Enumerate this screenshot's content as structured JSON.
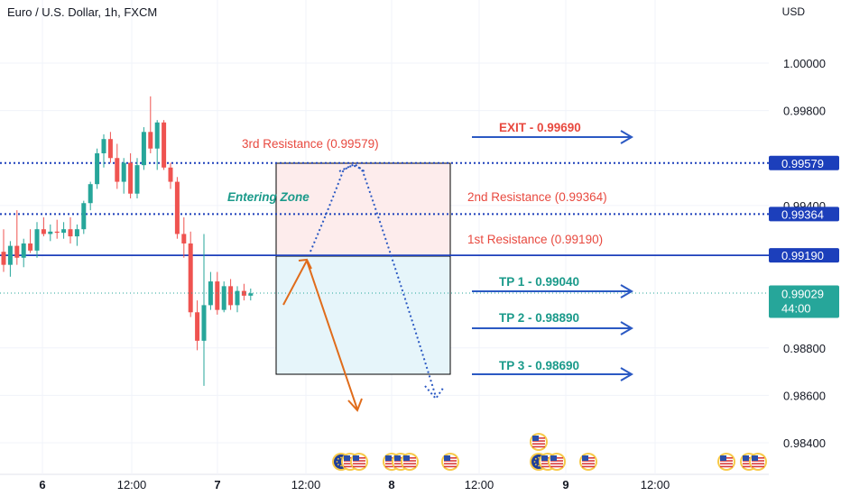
{
  "header": {
    "symbol_title": "Euro / U.S. Dollar, 1h, FXCM",
    "currency": "USD"
  },
  "colors": {
    "up": "#26a69a",
    "down": "#ef5350",
    "support_line": "#1c3fbb",
    "dotted_line": "#1c3fbb",
    "label_red": "#e8493f",
    "label_teal": "#1a9a8a",
    "arrow_blue": "#2b59c3",
    "arrow_orange": "#e06c1b",
    "zone_red": "#fdecec",
    "zone_blue": "#e6f5fa",
    "price_tag_blue": "#1c3fbb",
    "price_tag_teal": "#26a69a"
  },
  "chart_data": {
    "type": "candlestick",
    "x_ticks": [
      "6",
      "12:00",
      "7",
      "12:00",
      "8",
      "12:00",
      "9",
      "12:00"
    ],
    "y_ticks": [
      "1.00000",
      "0.99800",
      "0.99400",
      "0.98800",
      "0.98600",
      "0.98400"
    ],
    "ylim": [
      0.983,
      1.0015
    ],
    "current_price": "0.99029",
    "countdown": "44:00",
    "levels": [
      {
        "name": "3rd Resistance",
        "value": 0.99579,
        "tag": "0.99579",
        "style": "dotted"
      },
      {
        "name": "2nd Resistance",
        "value": 0.99364,
        "tag": "0.99364",
        "style": "dotted"
      },
      {
        "name": "1st Resistance",
        "value": 0.9919,
        "tag": "0.99190",
        "style": "solid"
      }
    ],
    "annotations": {
      "third_resistance": "3rd Resistance (0.99579)",
      "second_resistance": "2nd Resistance (0.99364)",
      "first_resistance": "1st Resistance (0.99190)",
      "entering_zone": "Entering Zone",
      "exit": "EXIT - 0.99690",
      "tp1": "TP 1 - 0.99040",
      "tp2": "TP 2 - 0.98890",
      "tp3": "TP 3 - 0.98690"
    },
    "candles": [
      {
        "o": 0.99205,
        "h": 0.993,
        "l": 0.9912,
        "c": 0.9915
      },
      {
        "o": 0.9915,
        "h": 0.9925,
        "l": 0.991,
        "c": 0.9923
      },
      {
        "o": 0.9923,
        "h": 0.9938,
        "l": 0.9915,
        "c": 0.9918
      },
      {
        "o": 0.9918,
        "h": 0.9926,
        "l": 0.9914,
        "c": 0.9924
      },
      {
        "o": 0.9924,
        "h": 0.993,
        "l": 0.992,
        "c": 0.9921
      },
      {
        "o": 0.9921,
        "h": 0.9933,
        "l": 0.9918,
        "c": 0.993
      },
      {
        "o": 0.993,
        "h": 0.9935,
        "l": 0.9927,
        "c": 0.9928
      },
      {
        "o": 0.9928,
        "h": 0.9932,
        "l": 0.9925,
        "c": 0.9929
      },
      {
        "o": 0.9929,
        "h": 0.9934,
        "l": 0.9926,
        "c": 0.99285
      },
      {
        "o": 0.99285,
        "h": 0.9933,
        "l": 0.9926,
        "c": 0.993
      },
      {
        "o": 0.993,
        "h": 0.9935,
        "l": 0.9924,
        "c": 0.9927
      },
      {
        "o": 0.9927,
        "h": 0.9932,
        "l": 0.9923,
        "c": 0.993
      },
      {
        "o": 0.993,
        "h": 0.9942,
        "l": 0.9928,
        "c": 0.9941
      },
      {
        "o": 0.9941,
        "h": 0.995,
        "l": 0.9938,
        "c": 0.9949
      },
      {
        "o": 0.9949,
        "h": 0.9964,
        "l": 0.9947,
        "c": 0.9962
      },
      {
        "o": 0.9962,
        "h": 0.997,
        "l": 0.9956,
        "c": 0.9968
      },
      {
        "o": 0.9968,
        "h": 0.9971,
        "l": 0.9958,
        "c": 0.996
      },
      {
        "o": 0.996,
        "h": 0.9966,
        "l": 0.9947,
        "c": 0.995
      },
      {
        "o": 0.995,
        "h": 0.996,
        "l": 0.9945,
        "c": 0.9958
      },
      {
        "o": 0.9958,
        "h": 0.9962,
        "l": 0.9943,
        "c": 0.9945
      },
      {
        "o": 0.9945,
        "h": 0.996,
        "l": 0.9943,
        "c": 0.9957
      },
      {
        "o": 0.9957,
        "h": 0.9973,
        "l": 0.9955,
        "c": 0.9971
      },
      {
        "o": 0.9971,
        "h": 0.9986,
        "l": 0.9962,
        "c": 0.9964
      },
      {
        "o": 0.9964,
        "h": 0.9976,
        "l": 0.9955,
        "c": 0.9975
      },
      {
        "o": 0.9975,
        "h": 0.9976,
        "l": 0.9955,
        "c": 0.9956
      },
      {
        "o": 0.9956,
        "h": 0.9958,
        "l": 0.9947,
        "c": 0.995
      },
      {
        "o": 0.995,
        "h": 0.9952,
        "l": 0.9926,
        "c": 0.9928
      },
      {
        "o": 0.9928,
        "h": 0.9935,
        "l": 0.9918,
        "c": 0.9924
      },
      {
        "o": 0.9924,
        "h": 0.9929,
        "l": 0.9893,
        "c": 0.9895
      },
      {
        "o": 0.9895,
        "h": 0.99,
        "l": 0.9879,
        "c": 0.9883
      },
      {
        "o": 0.9883,
        "h": 0.9928,
        "l": 0.9864,
        "c": 0.9898
      },
      {
        "o": 0.9898,
        "h": 0.9912,
        "l": 0.9896,
        "c": 0.9908
      },
      {
        "o": 0.9908,
        "h": 0.9912,
        "l": 0.9894,
        "c": 0.9896
      },
      {
        "o": 0.9896,
        "h": 0.9908,
        "l": 0.9895,
        "c": 0.9906
      },
      {
        "o": 0.9906,
        "h": 0.9909,
        "l": 0.9896,
        "c": 0.9898
      },
      {
        "o": 0.9898,
        "h": 0.9906,
        "l": 0.9895,
        "c": 0.9904
      },
      {
        "o": 0.9904,
        "h": 0.9907,
        "l": 0.99,
        "c": 0.9902
      },
      {
        "o": 0.9902,
        "h": 0.9905,
        "l": 0.99,
        "c": 0.9903
      }
    ],
    "events": [
      {
        "date_slot": 1,
        "flags": [
          "eu",
          "us",
          "us"
        ]
      },
      {
        "date_slot": 2,
        "flags": [
          "us",
          "us",
          "us"
        ]
      },
      {
        "date_slot": 3,
        "flags": [
          "us"
        ]
      },
      {
        "date_slot": 4,
        "flags": [
          "eu",
          "us",
          "us"
        ]
      },
      {
        "date_slot": 5,
        "flags": [
          "us"
        ]
      },
      {
        "date_slot": 6,
        "flags": [
          "us"
        ]
      },
      {
        "date_slot": 7,
        "flags": [
          "us",
          "us"
        ]
      }
    ]
  }
}
